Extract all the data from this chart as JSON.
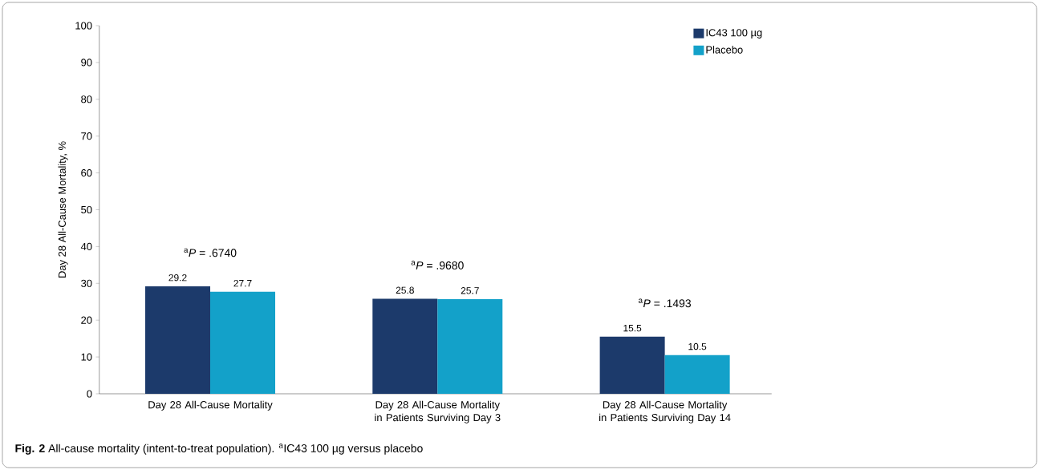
{
  "chart_data": {
    "type": "bar",
    "categories": [
      "Day 28 All-Cause Mortality",
      "Day 28 All-Cause Mortality in Patients Surviving Day 3",
      "Day 28 All-Cause Mortality in Patients Surviving Day 14"
    ],
    "series": [
      {
        "name": "IC43 100 µg",
        "color": "#1c3a6b",
        "values": [
          29.2,
          25.8,
          15.5
        ]
      },
      {
        "name": "Placebo",
        "color": "#13a1c9",
        "values": [
          27.7,
          25.7,
          10.5
        ]
      }
    ],
    "ylabel": "Day 28 All-Cause Mortality, %",
    "ylim": [
      0,
      100
    ],
    "yticks": [
      0,
      10,
      20,
      30,
      40,
      50,
      60,
      70,
      80,
      90,
      100
    ],
    "data_labels": true,
    "grid": false,
    "legend": "top right",
    "annotations": [
      "$^{a}$*P* = .6740",
      "$^{a}$*P* = .9680",
      "$^{a}$*P* = .1493",
      "**Fig. 2** All-cause mortality (intent-to-treat population). $^{a}$IC43 100 µg versus placebo"
    ]
  }
}
